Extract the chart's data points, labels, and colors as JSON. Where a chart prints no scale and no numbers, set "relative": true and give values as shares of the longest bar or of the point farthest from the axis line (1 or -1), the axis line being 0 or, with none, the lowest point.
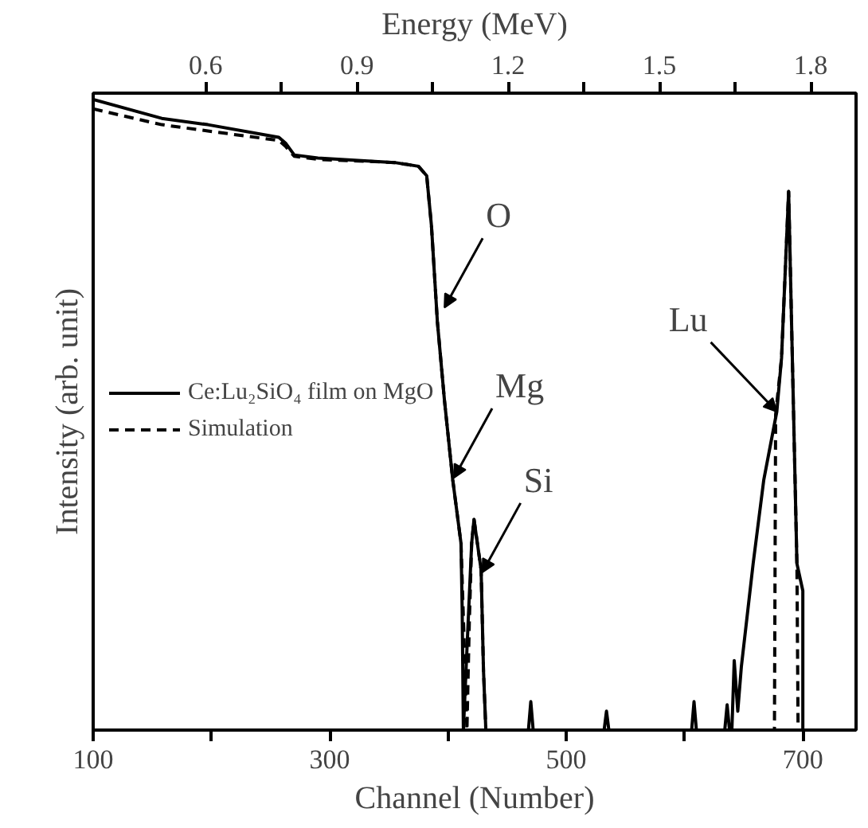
{
  "chart_data": {
    "type": "line",
    "xlabel": "Channel (Number)",
    "ylabel": "Intensity (arb. unit)",
    "x2label": "Energy (MeV)",
    "relative": true,
    "xlim": [
      100,
      745
    ],
    "xticks": [
      100,
      {
        "value": 200,
        "label": null
      },
      300,
      {
        "value": 400,
        "label": null
      },
      500,
      {
        "value": 600,
        "label": null
      },
      700
    ],
    "x2lim": [
      0.377,
      1.89
    ],
    "x2ticks": [
      {
        "value": 0.6,
        "label": "0.6"
      },
      {
        "value": 0.75,
        "label": null
      },
      {
        "value": 0.9,
        "label": "0.9"
      },
      {
        "value": 1.05,
        "label": null
      },
      {
        "value": 1.2,
        "label": "1.2"
      },
      {
        "value": 1.35,
        "label": null
      },
      {
        "value": 1.5,
        "label": "1.5"
      },
      {
        "value": 1.65,
        "label": null
      },
      {
        "value": 1.8,
        "label": "1.8"
      }
    ],
    "tick_labels": "x",
    "legend": "left",
    "series": [
      {
        "name": "Ce:Lu₂SiO₄ film on MgO",
        "color": "#000000",
        "line_style": "solid",
        "x": [
          100,
          158,
          197,
          257,
          263,
          270,
          290,
          355,
          375,
          382,
          386,
          391,
          397,
          404,
          411,
          412,
          413,
          417,
          420,
          422,
          428,
          430,
          432,
          468,
          470,
          472,
          532,
          534,
          536,
          606,
          608,
          610,
          634,
          636,
          638,
          640,
          642,
          645,
          648,
          658,
          667,
          678,
          682,
          688,
          695,
          700,
          700,
          743
        ],
        "values": [
          1.0,
          0.97,
          0.96,
          0.94,
          0.93,
          0.912,
          0.907,
          0.9,
          0.894,
          0.879,
          0.8,
          0.648,
          0.523,
          0.397,
          0.296,
          0.19,
          0,
          0.17,
          0.296,
          0.334,
          0.254,
          0.095,
          0,
          0,
          0.045,
          0,
          0,
          0.03,
          0,
          0,
          0.045,
          0,
          0,
          0.04,
          0,
          0,
          0.11,
          0.03,
          0.1,
          0.264,
          0.397,
          0.505,
          0.59,
          0.854,
          0.264,
          0.221,
          0,
          0
        ]
      },
      {
        "name": "Simulation",
        "color": "#000000",
        "line_style": "dashed",
        "x": [
          100,
          158,
          197,
          257,
          263,
          270,
          290,
          355,
          375,
          382,
          386,
          391,
          397,
          404,
          411,
          416,
          418,
          420,
          422,
          428,
          430,
          432,
          676,
          677,
          682,
          688,
          695,
          696,
          743
        ],
        "values": [
          0.985,
          0.96,
          0.95,
          0.935,
          0.925,
          0.91,
          0.905,
          0.9,
          0.894,
          0.879,
          0.8,
          0.648,
          0.523,
          0.397,
          0.296,
          0,
          0.17,
          0.296,
          0.334,
          0.254,
          0.095,
          0,
          0,
          0.5,
          0.59,
          0.854,
          0.264,
          0,
          0
        ]
      }
    ],
    "annotations": [
      {
        "text": "O",
        "x": 397,
        "y": 0.67
      },
      {
        "text": "Mg",
        "x": 405,
        "y": 0.4
      },
      {
        "text": "Si",
        "x": 429,
        "y": 0.25
      },
      {
        "text": "Lu",
        "x": 678,
        "y": 0.505
      }
    ]
  }
}
